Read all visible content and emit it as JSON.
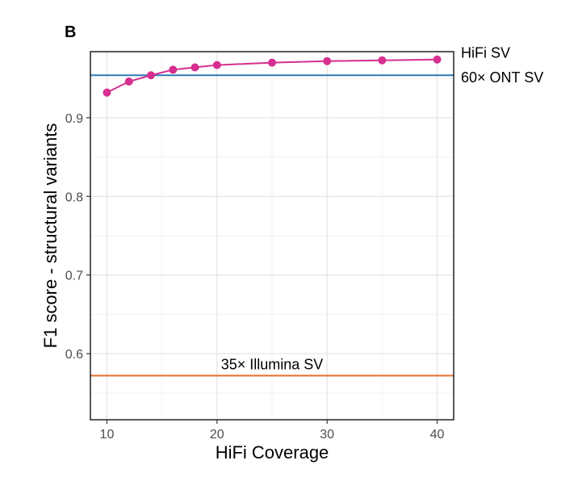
{
  "panel_label": "B",
  "chart_data": {
    "type": "line",
    "title": "",
    "xlabel": "HiFi Coverage",
    "ylabel": "F1 score - structural variants",
    "xlim": [
      8.5,
      41.5
    ],
    "ylim": [
      0.516,
      0.984
    ],
    "x_ticks": [
      10,
      20,
      30,
      40
    ],
    "y_ticks": [
      0.6,
      0.7,
      0.8,
      0.9
    ],
    "grid": true,
    "series": [
      {
        "name": "HiFi SV",
        "color": "#d62f8f",
        "x": [
          10,
          12,
          14,
          16,
          18,
          20,
          25,
          30,
          35,
          40
        ],
        "y": [
          0.932,
          0.946,
          0.954,
          0.961,
          0.964,
          0.967,
          0.97,
          0.972,
          0.973,
          0.974
        ]
      }
    ],
    "reference_lines": [
      {
        "label": "60× ONT SV",
        "y": 0.954,
        "color": "#2c7bb6",
        "label_position": "right"
      },
      {
        "label": "35× Illumina SV",
        "y": 0.572,
        "color": "#e66e2e",
        "label_position": "above-center"
      }
    ]
  }
}
